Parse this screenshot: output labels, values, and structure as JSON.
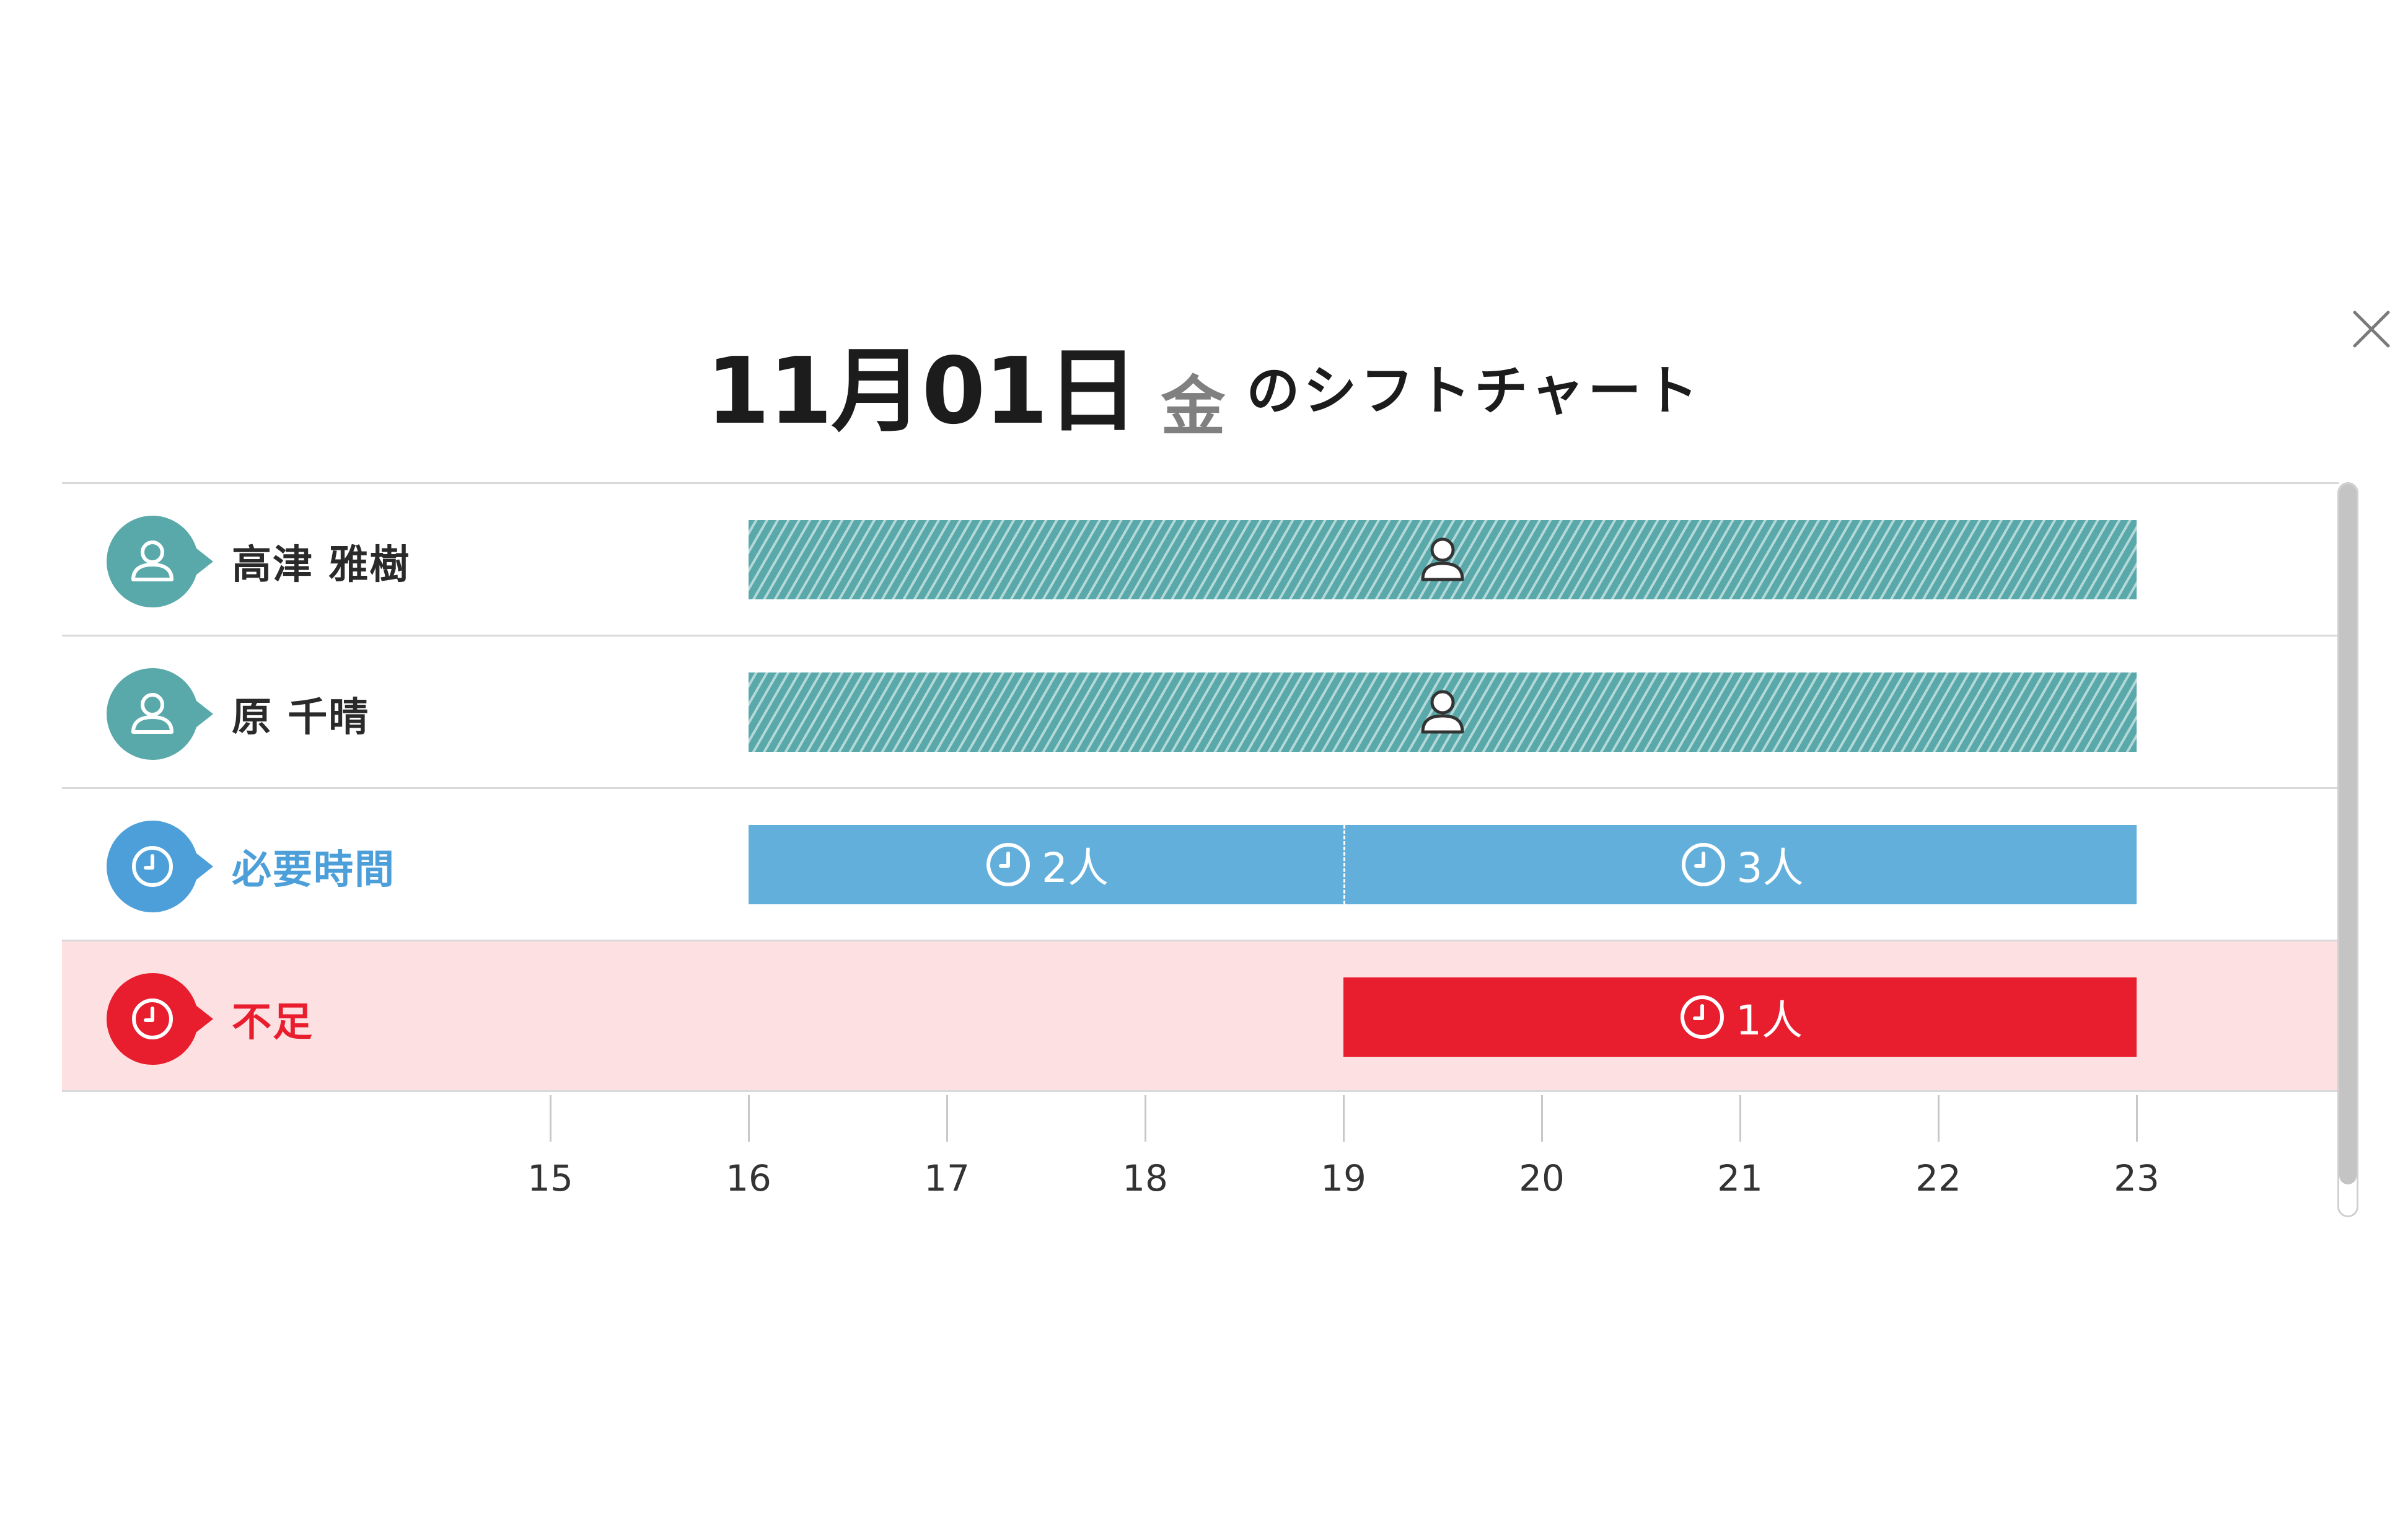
{
  "title": {
    "date": "11月01日",
    "weekday": "金",
    "suffix": "のシフトチャート"
  },
  "close_icon": "close-icon",
  "rows": [
    {
      "type": "staff",
      "name": "高津 雅樹",
      "icon": "person-icon",
      "color": "#5aa9aa",
      "start": 16,
      "end": 23
    },
    {
      "type": "staff",
      "name": "原 千晴",
      "icon": "person-icon",
      "color": "#5aa9aa",
      "start": 16,
      "end": 23
    }
  ],
  "required": {
    "label": "必要時間",
    "icon": "clock-icon",
    "color": "#4c9fd9",
    "segments": [
      {
        "start": 16,
        "end": 19,
        "count_label": "2人"
      },
      {
        "start": 19,
        "end": 23,
        "count_label": "3人"
      }
    ]
  },
  "shortage": {
    "label": "不足",
    "icon": "clock-icon",
    "color": "#e81d2d",
    "background": "#fde1e2",
    "segments": [
      {
        "start": 19,
        "end": 23,
        "count_label": "1人"
      }
    ]
  },
  "axis": {
    "ticks": [
      "15",
      "16",
      "17",
      "18",
      "19",
      "20",
      "21",
      "22",
      "23"
    ]
  }
}
